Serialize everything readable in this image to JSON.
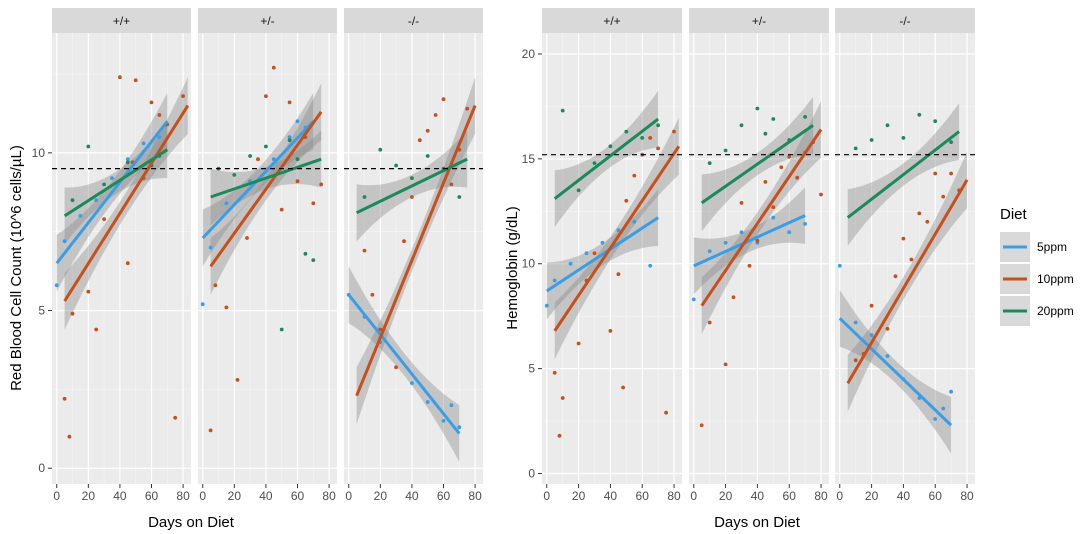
{
  "chart_data": [
    {
      "type": "scatter",
      "title": "",
      "xlabel": "Days on Diet",
      "ylabel": "Red Blood Cell Count (10^6 cells/µL)",
      "x_ticks": [
        0,
        20,
        40,
        60,
        80
      ],
      "y_ticks": [
        0,
        5,
        10
      ],
      "xlim": [
        -3,
        85
      ],
      "ylim": [
        -0.5,
        13.8
      ],
      "reference_line": 9.5,
      "facets": [
        {
          "label": "+/+",
          "fits": [
            {
              "diet": "5ppm",
              "x0": 0,
              "y0": 6.5,
              "x1": 70,
              "y1": 11.0
            },
            {
              "diet": "10ppm",
              "x0": 5,
              "y0": 5.3,
              "x1": 83,
              "y1": 11.5
            },
            {
              "diet": "20ppm",
              "x0": 5,
              "y0": 8.0,
              "x1": 70,
              "y1": 10.1
            }
          ],
          "points": [
            {
              "diet": "5ppm",
              "x": [
                0,
                5,
                15,
                25,
                35,
                45,
                55,
                65
              ],
              "y": [
                5.8,
                7.2,
                8.0,
                8.5,
                9.2,
                9.8,
                10.3,
                10.5
              ]
            },
            {
              "diet": "10ppm",
              "x": [
                5,
                8,
                10,
                20,
                25,
                30,
                40,
                45,
                48,
                50,
                55,
                60,
                65,
                70,
                75,
                80
              ],
              "y": [
                2.2,
                1.0,
                4.9,
                5.6,
                4.4,
                7.9,
                12.4,
                6.5,
                9.7,
                12.3,
                9.2,
                11.6,
                11.2,
                10.9,
                1.6,
                11.8
              ]
            },
            {
              "diet": "20ppm",
              "x": [
                10,
                20,
                30,
                45,
                60,
                65
              ],
              "y": [
                8.5,
                10.2,
                9.0,
                9.7,
                9.6,
                9.9
              ]
            }
          ]
        },
        {
          "label": "+/-",
          "fits": [
            {
              "diet": "5ppm",
              "x0": 0,
              "y0": 7.3,
              "x1": 70,
              "y1": 11.0
            },
            {
              "diet": "10ppm",
              "x0": 5,
              "y0": 6.4,
              "x1": 75,
              "y1": 11.3
            },
            {
              "diet": "20ppm",
              "x0": 5,
              "y0": 8.6,
              "x1": 75,
              "y1": 9.8
            }
          ],
          "points": [
            {
              "diet": "5ppm",
              "x": [
                0,
                5,
                15,
                30,
                45,
                55,
                60,
                65
              ],
              "y": [
                5.2,
                7.0,
                8.4,
                9.1,
                9.8,
                10.5,
                11.0,
                10.8
              ]
            },
            {
              "diet": "10ppm",
              "x": [
                5,
                8,
                15,
                22,
                28,
                35,
                40,
                45,
                50,
                55,
                60,
                65,
                70,
                75
              ],
              "y": [
                1.2,
                5.8,
                5.1,
                2.8,
                7.3,
                9.8,
                11.8,
                12.7,
                8.2,
                11.6,
                9.1,
                10.5,
                8.4,
                9.0
              ]
            },
            {
              "diet": "20ppm",
              "x": [
                10,
                20,
                30,
                40,
                50,
                55,
                60,
                65,
                70
              ],
              "y": [
                9.5,
                9.3,
                9.9,
                10.2,
                4.4,
                10.4,
                9.8,
                6.8,
                6.6
              ]
            }
          ]
        },
        {
          "label": "-/-",
          "fits": [
            {
              "diet": "5ppm",
              "x0": 0,
              "y0": 5.5,
              "x1": 70,
              "y1": 1.1
            },
            {
              "diet": "10ppm",
              "x0": 5,
              "y0": 2.3,
              "x1": 80,
              "y1": 11.5
            },
            {
              "diet": "20ppm",
              "x0": 5,
              "y0": 8.1,
              "x1": 75,
              "y1": 9.8
            }
          ],
          "points": [
            {
              "diet": "5ppm",
              "x": [
                0,
                10,
                20,
                30,
                40,
                50,
                60,
                65,
                70
              ],
              "y": [
                5.5,
                4.8,
                4.0,
                3.2,
                2.7,
                2.1,
                1.5,
                2.0,
                1.3
              ]
            },
            {
              "diet": "10ppm",
              "x": [
                10,
                15,
                20,
                30,
                35,
                40,
                45,
                50,
                55,
                60,
                65,
                70,
                75
              ],
              "y": [
                6.9,
                5.5,
                4.4,
                3.2,
                7.2,
                8.6,
                10.4,
                10.7,
                11.2,
                11.7,
                9.0,
                10.1,
                11.4
              ]
            },
            {
              "diet": "20ppm",
              "x": [
                10,
                20,
                30,
                40,
                50,
                60,
                70
              ],
              "y": [
                8.6,
                10.1,
                9.6,
                9.2,
                9.9,
                9.5,
                8.6
              ]
            }
          ]
        }
      ]
    },
    {
      "type": "scatter",
      "title": "",
      "xlabel": "Days on Diet",
      "ylabel": "Hemoglobin (g/dL)",
      "x_ticks": [
        0,
        20,
        40,
        60,
        80
      ],
      "y_ticks": [
        0,
        5,
        10,
        15,
        20
      ],
      "xlim": [
        -3,
        85
      ],
      "ylim": [
        -0.5,
        21.0
      ],
      "reference_line": 15.2,
      "facets": [
        {
          "label": "+/+",
          "fits": [
            {
              "diet": "5ppm",
              "x0": 0,
              "y0": 8.7,
              "x1": 70,
              "y1": 12.2
            },
            {
              "diet": "10ppm",
              "x0": 5,
              "y0": 6.8,
              "x1": 83,
              "y1": 15.6
            },
            {
              "diet": "20ppm",
              "x0": 5,
              "y0": 13.1,
              "x1": 70,
              "y1": 16.9
            }
          ],
          "points": [
            {
              "diet": "5ppm",
              "x": [
                0,
                5,
                15,
                25,
                35,
                45,
                55,
                65
              ],
              "y": [
                8.0,
                9.2,
                10.0,
                10.5,
                11.0,
                11.6,
                12.0,
                9.9
              ]
            },
            {
              "diet": "10ppm",
              "x": [
                5,
                8,
                10,
                20,
                25,
                30,
                40,
                45,
                48,
                50,
                55,
                60,
                65,
                70,
                75,
                80
              ],
              "y": [
                4.8,
                1.8,
                3.6,
                6.2,
                9.2,
                10.5,
                6.8,
                9.5,
                4.1,
                13.0,
                14.2,
                15.2,
                16.0,
                15.5,
                2.9,
                16.3
              ]
            },
            {
              "diet": "20ppm",
              "x": [
                10,
                20,
                30,
                40,
                50,
                60,
                70
              ],
              "y": [
                17.3,
                13.5,
                14.8,
                15.6,
                16.3,
                16.0,
                16.6
              ]
            }
          ]
        },
        {
          "label": "+/-",
          "fits": [
            {
              "diet": "5ppm",
              "x0": 0,
              "y0": 9.9,
              "x1": 70,
              "y1": 12.3
            },
            {
              "diet": "10ppm",
              "x0": 5,
              "y0": 8.0,
              "x1": 80,
              "y1": 16.4
            },
            {
              "diet": "20ppm",
              "x0": 5,
              "y0": 12.9,
              "x1": 75,
              "y1": 16.6
            }
          ],
          "points": [
            {
              "diet": "5ppm",
              "x": [
                0,
                10,
                20,
                30,
                40,
                50,
                60,
                70
              ],
              "y": [
                8.3,
                10.6,
                11.0,
                11.5,
                11.0,
                12.2,
                11.5,
                11.9
              ]
            },
            {
              "diet": "10ppm",
              "x": [
                5,
                10,
                20,
                25,
                30,
                35,
                40,
                45,
                50,
                55,
                60,
                65,
                70,
                75,
                80
              ],
              "y": [
                2.3,
                7.2,
                5.2,
                8.4,
                12.9,
                9.9,
                11.1,
                13.9,
                12.7,
                14.6,
                15.1,
                14.1,
                15.3,
                15.8,
                13.3
              ]
            },
            {
              "diet": "20ppm",
              "x": [
                10,
                20,
                30,
                40,
                45,
                50,
                60,
                70
              ],
              "y": [
                14.8,
                15.4,
                16.6,
                17.4,
                16.2,
                16.9,
                15.9,
                17.0
              ]
            }
          ]
        },
        {
          "label": "-/-",
          "fits": [
            {
              "diet": "5ppm",
              "x0": 0,
              "y0": 7.4,
              "x1": 70,
              "y1": 2.3
            },
            {
              "diet": "10ppm",
              "x0": 5,
              "y0": 4.3,
              "x1": 80,
              "y1": 14.0
            },
            {
              "diet": "20ppm",
              "x0": 5,
              "y0": 12.2,
              "x1": 75,
              "y1": 16.3
            }
          ],
          "points": [
            {
              "diet": "5ppm",
              "x": [
                0,
                10,
                20,
                30,
                40,
                50,
                60,
                65,
                70
              ],
              "y": [
                9.9,
                7.2,
                6.6,
                5.6,
                4.5,
                3.6,
                2.6,
                3.1,
                3.9
              ]
            },
            {
              "diet": "10ppm",
              "x": [
                10,
                15,
                20,
                30,
                35,
                40,
                45,
                50,
                55,
                60,
                65,
                70,
                75
              ],
              "y": [
                5.4,
                5.7,
                8.0,
                6.9,
                9.4,
                11.2,
                10.2,
                12.4,
                12.0,
                14.3,
                13.2,
                14.3,
                13.5
              ]
            },
            {
              "diet": "20ppm",
              "x": [
                10,
                20,
                30,
                40,
                50,
                60,
                70
              ],
              "y": [
                15.5,
                15.9,
                16.6,
                16.0,
                17.1,
                16.8,
                15.8
              ]
            }
          ]
        }
      ]
    }
  ],
  "legend": {
    "title": "Diet",
    "entries": [
      {
        "diet": "5ppm",
        "label": "5ppm",
        "color": "#3a9ee6"
      },
      {
        "diet": "10ppm",
        "label": "10ppm",
        "color": "#c84f1a"
      },
      {
        "diet": "20ppm",
        "label": "20ppm",
        "color": "#1b8a5a"
      }
    ]
  }
}
